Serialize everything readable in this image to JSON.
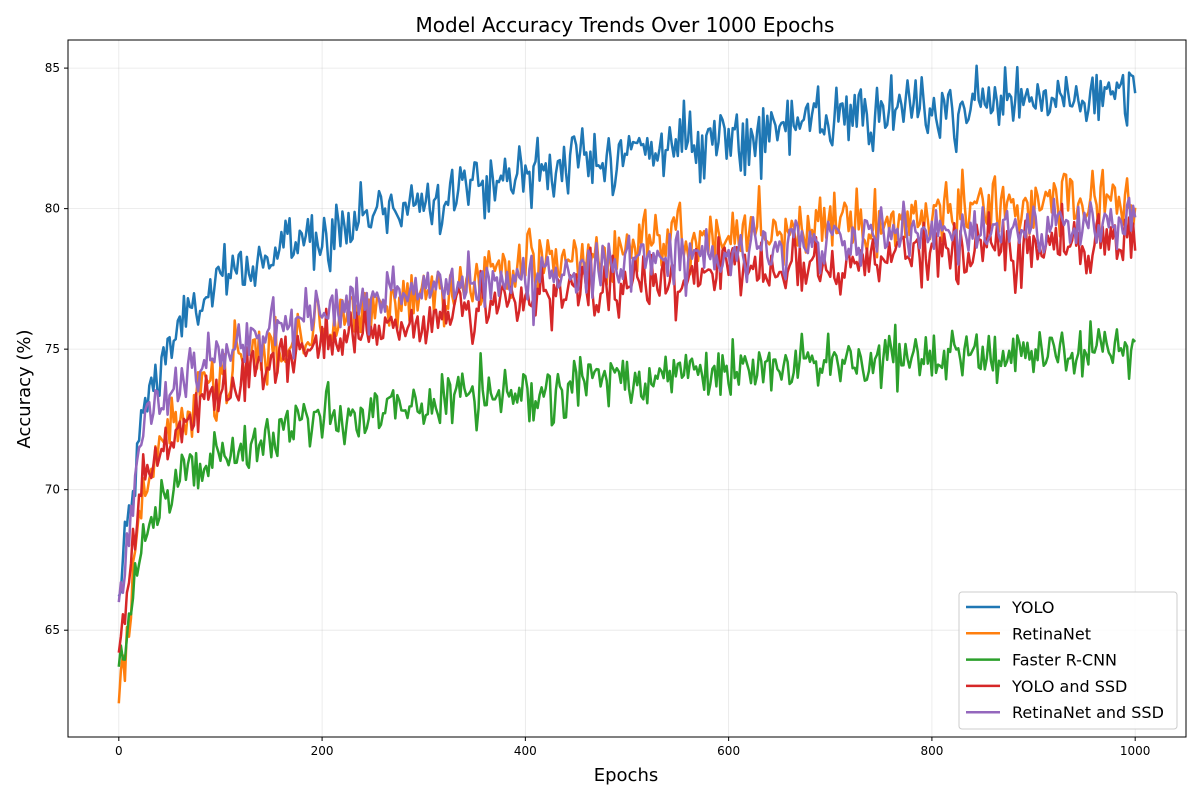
{
  "chart_data": {
    "type": "line",
    "title": "Model Accuracy Trends Over 1000 Epochs",
    "xlabel": "Epochs",
    "ylabel": "Accuracy (%)",
    "xlim": [
      -50,
      1050
    ],
    "ylim": [
      61.2,
      86.0
    ],
    "xticks": [
      0,
      200,
      400,
      600,
      800,
      1000
    ],
    "yticks": [
      65,
      70,
      75,
      80,
      85
    ],
    "grid": true,
    "legend_position": "lower-right",
    "x": [
      0,
      25,
      50,
      75,
      100,
      150,
      200,
      250,
      300,
      350,
      400,
      450,
      500,
      550,
      600,
      650,
      700,
      750,
      800,
      850,
      900,
      950,
      1000
    ],
    "series": [
      {
        "name": "YOLO",
        "color": "#1f77b4",
        "noise": 0.55,
        "values": [
          66.2,
          73.0,
          75.2,
          76.5,
          77.3,
          78.4,
          79.2,
          79.8,
          80.4,
          80.9,
          81.3,
          81.7,
          82.0,
          82.3,
          82.6,
          82.9,
          83.1,
          83.3,
          83.5,
          83.7,
          83.9,
          84.0,
          84.1
        ]
      },
      {
        "name": "RetinaNet",
        "color": "#ff7f0e",
        "noise": 0.55,
        "values": [
          62.4,
          70.0,
          72.0,
          73.2,
          74.0,
          75.1,
          75.9,
          76.5,
          77.0,
          77.5,
          77.9,
          78.2,
          78.5,
          78.8,
          79.0,
          79.2,
          79.4,
          79.6,
          79.8,
          80.0,
          80.1,
          80.2,
          80.3
        ]
      },
      {
        "name": "Faster R-CNN",
        "color": "#2ca02c",
        "noise": 0.5,
        "values": [
          63.7,
          68.4,
          69.9,
          70.6,
          71.1,
          71.8,
          72.3,
          72.7,
          73.0,
          73.3,
          73.5,
          73.7,
          73.9,
          74.1,
          74.2,
          74.4,
          74.5,
          74.6,
          74.7,
          74.8,
          74.9,
          75.0,
          75.1
        ]
      },
      {
        "name": "YOLO and SSD",
        "color": "#d62728",
        "noise": 0.5,
        "values": [
          64.2,
          70.2,
          71.8,
          72.8,
          73.5,
          74.5,
          75.2,
          75.7,
          76.1,
          76.5,
          76.8,
          77.1,
          77.3,
          77.5,
          77.7,
          77.9,
          78.1,
          78.3,
          78.4,
          78.5,
          78.6,
          78.7,
          78.8
        ]
      },
      {
        "name": "RetinaNet and SSD",
        "color": "#9467bd",
        "noise": 0.5,
        "values": [
          66.0,
          72.3,
          73.6,
          74.4,
          75.0,
          75.8,
          76.3,
          76.8,
          77.1,
          77.4,
          77.7,
          77.9,
          78.1,
          78.3,
          78.5,
          78.7,
          78.8,
          79.0,
          79.1,
          79.3,
          79.4,
          79.5,
          79.6
        ]
      }
    ]
  }
}
